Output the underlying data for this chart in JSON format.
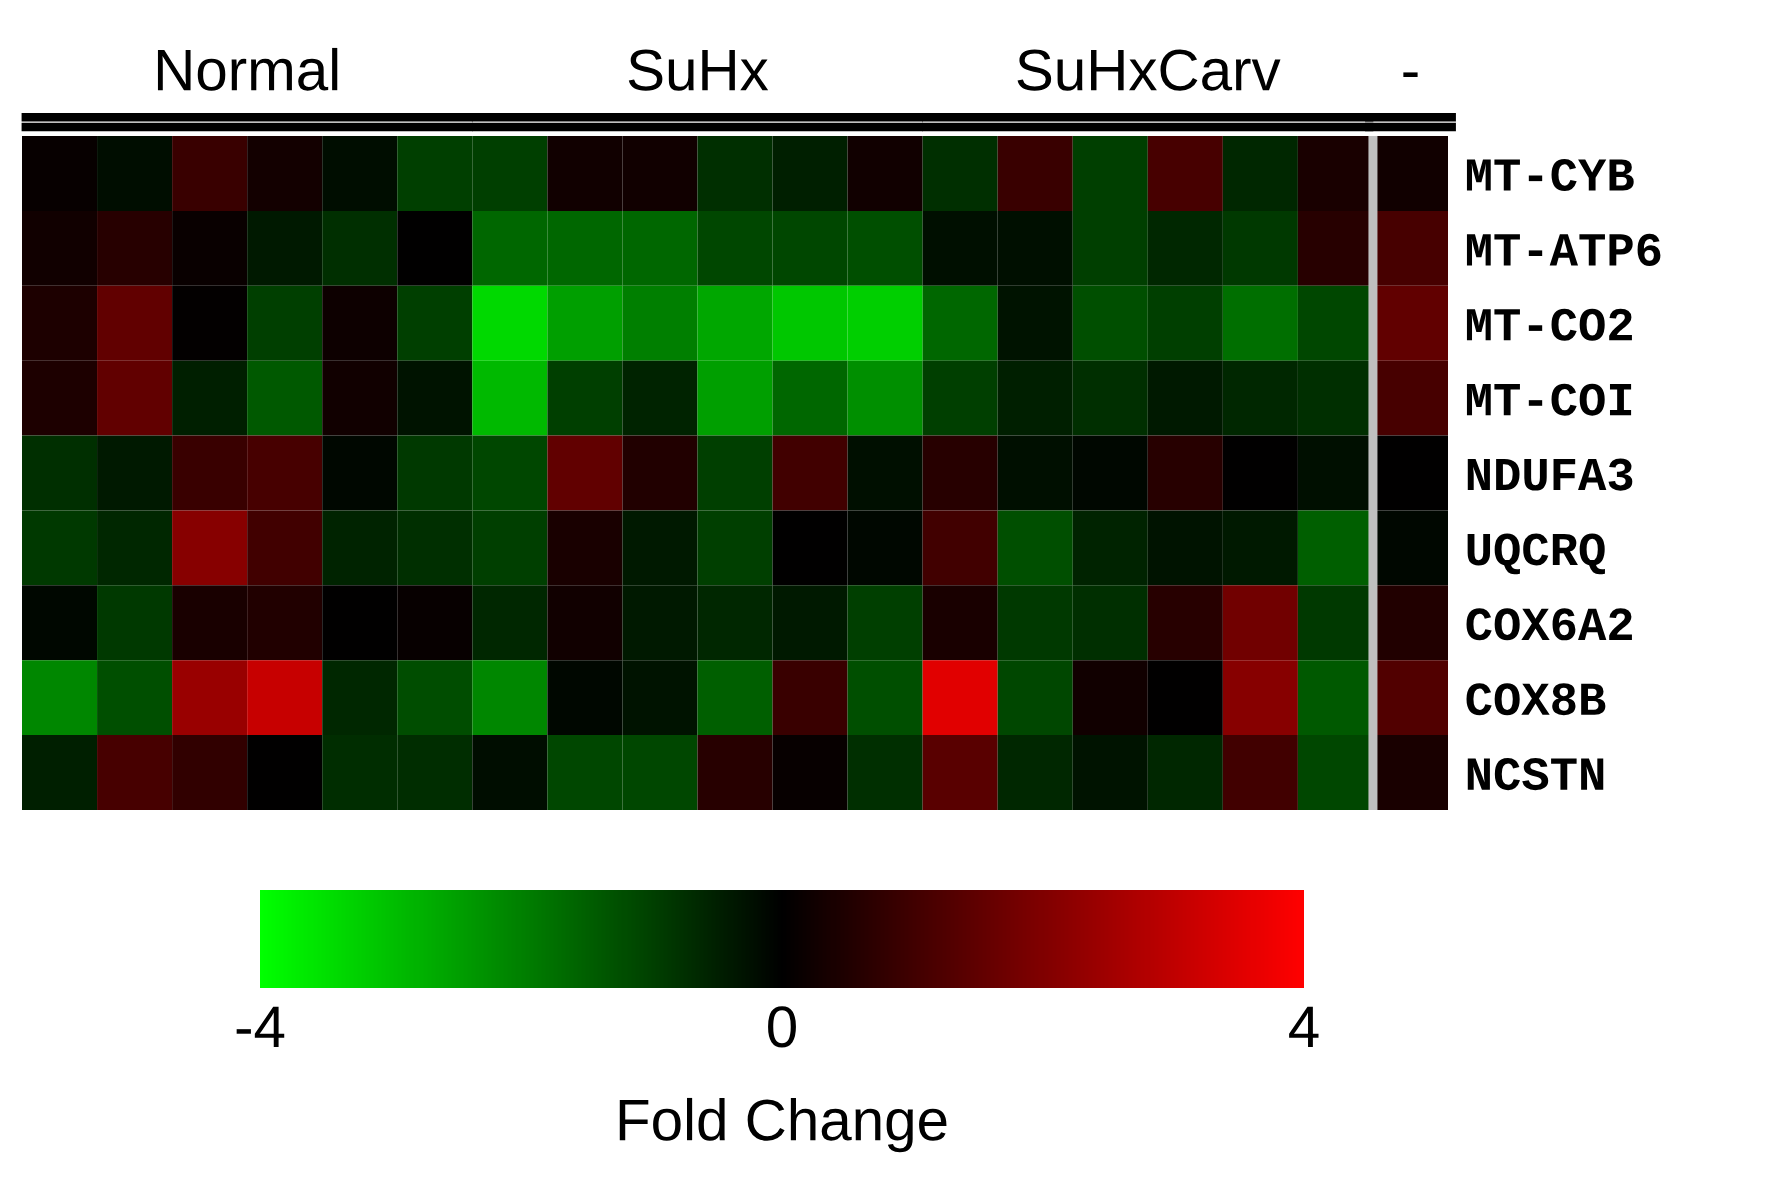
{
  "chart_data": {
    "type": "heatmap",
    "categories": [
      null,
      null,
      null,
      null,
      null,
      null,
      null,
      null,
      null,
      null,
      null,
      null,
      null,
      null,
      null,
      null,
      null,
      null,
      null
    ],
    "y_categories": [
      "MT-CYB",
      "MT-ATP6",
      "MT-CO2",
      "MT-COI",
      "NDUFA3",
      "UQCRQ",
      "COX6A2",
      "COX8B",
      "NCSTN"
    ],
    "annotations": [
      "Normal",
      "SuHx",
      "SuHxCarv",
      "-"
    ],
    "cells": [
      [
        0.1,
        -0.2,
        0.9,
        0.3,
        -0.2,
        -1.0,
        -1.0,
        0.25,
        0.25,
        -0.75,
        -0.5,
        0.25,
        -0.75,
        0.9,
        -1.0,
        1.1,
        -0.6,
        0.4,
        0.25
      ],
      [
        0.25,
        0.6,
        0.15,
        -0.4,
        -0.75,
        0,
        -1.6,
        -1.6,
        -1.6,
        -1.1,
        -1.1,
        -1.25,
        -0.25,
        -0.25,
        -1.0,
        -0.6,
        -0.9,
        0.6,
        1.1
      ],
      [
        0.45,
        1.5,
        0.05,
        -1.0,
        0.2,
        -1.0,
        -3.4,
        -2.5,
        -2.0,
        -2.6,
        -3.1,
        -3.25,
        -1.6,
        -0.3,
        -1.25,
        -1.0,
        -1.75,
        -1.1,
        1.5
      ],
      [
        0.45,
        1.5,
        -0.5,
        -1.4,
        0.25,
        -0.3,
        -2.9,
        -1.0,
        -0.55,
        -2.5,
        -1.6,
        -2.25,
        -1.0,
        -0.5,
        -0.75,
        -0.4,
        -0.6,
        -0.75,
        1.1
      ],
      [
        -0.75,
        -0.4,
        0.9,
        1.1,
        -0.1,
        -0.9,
        -1.1,
        1.5,
        0.5,
        -1.0,
        1.0,
        -0.25,
        0.6,
        -0.25,
        -0.1,
        0.6,
        0,
        -0.25,
        0
      ],
      [
        -0.9,
        -0.6,
        2.1,
        1.0,
        -0.55,
        -0.75,
        -1.0,
        0.4,
        -0.4,
        -1.0,
        0,
        -0.1,
        1.0,
        -1.25,
        -0.55,
        -0.3,
        -0.4,
        -1.5,
        -0.1
      ],
      [
        -0.1,
        -0.9,
        0.4,
        0.5,
        0,
        0.1,
        -0.6,
        0.25,
        -0.4,
        -0.6,
        -0.4,
        -1.0,
        0.4,
        -0.9,
        -0.75,
        0.6,
        1.75,
        -0.9,
        0.5
      ],
      [
        -2.1,
        -1.25,
        2.4,
        3.1,
        -0.6,
        -1.2,
        -2.1,
        -0.1,
        -0.3,
        -1.5,
        0.9,
        -1.25,
        3.5,
        -1.1,
        0.25,
        0,
        2.1,
        -1.4,
        1.25
      ],
      [
        -0.5,
        1.1,
        0.75,
        0,
        -0.7,
        -0.7,
        -0.2,
        -1.1,
        -1.1,
        0.6,
        0.1,
        -0.75,
        1.4,
        -0.6,
        -0.3,
        -0.6,
        1.0,
        -1.1,
        0.4
      ]
    ],
    "clim": [
      -4,
      4
    ],
    "cticks": [
      -4,
      0,
      4
    ],
    "clabel": "Fold Change"
  }
}
